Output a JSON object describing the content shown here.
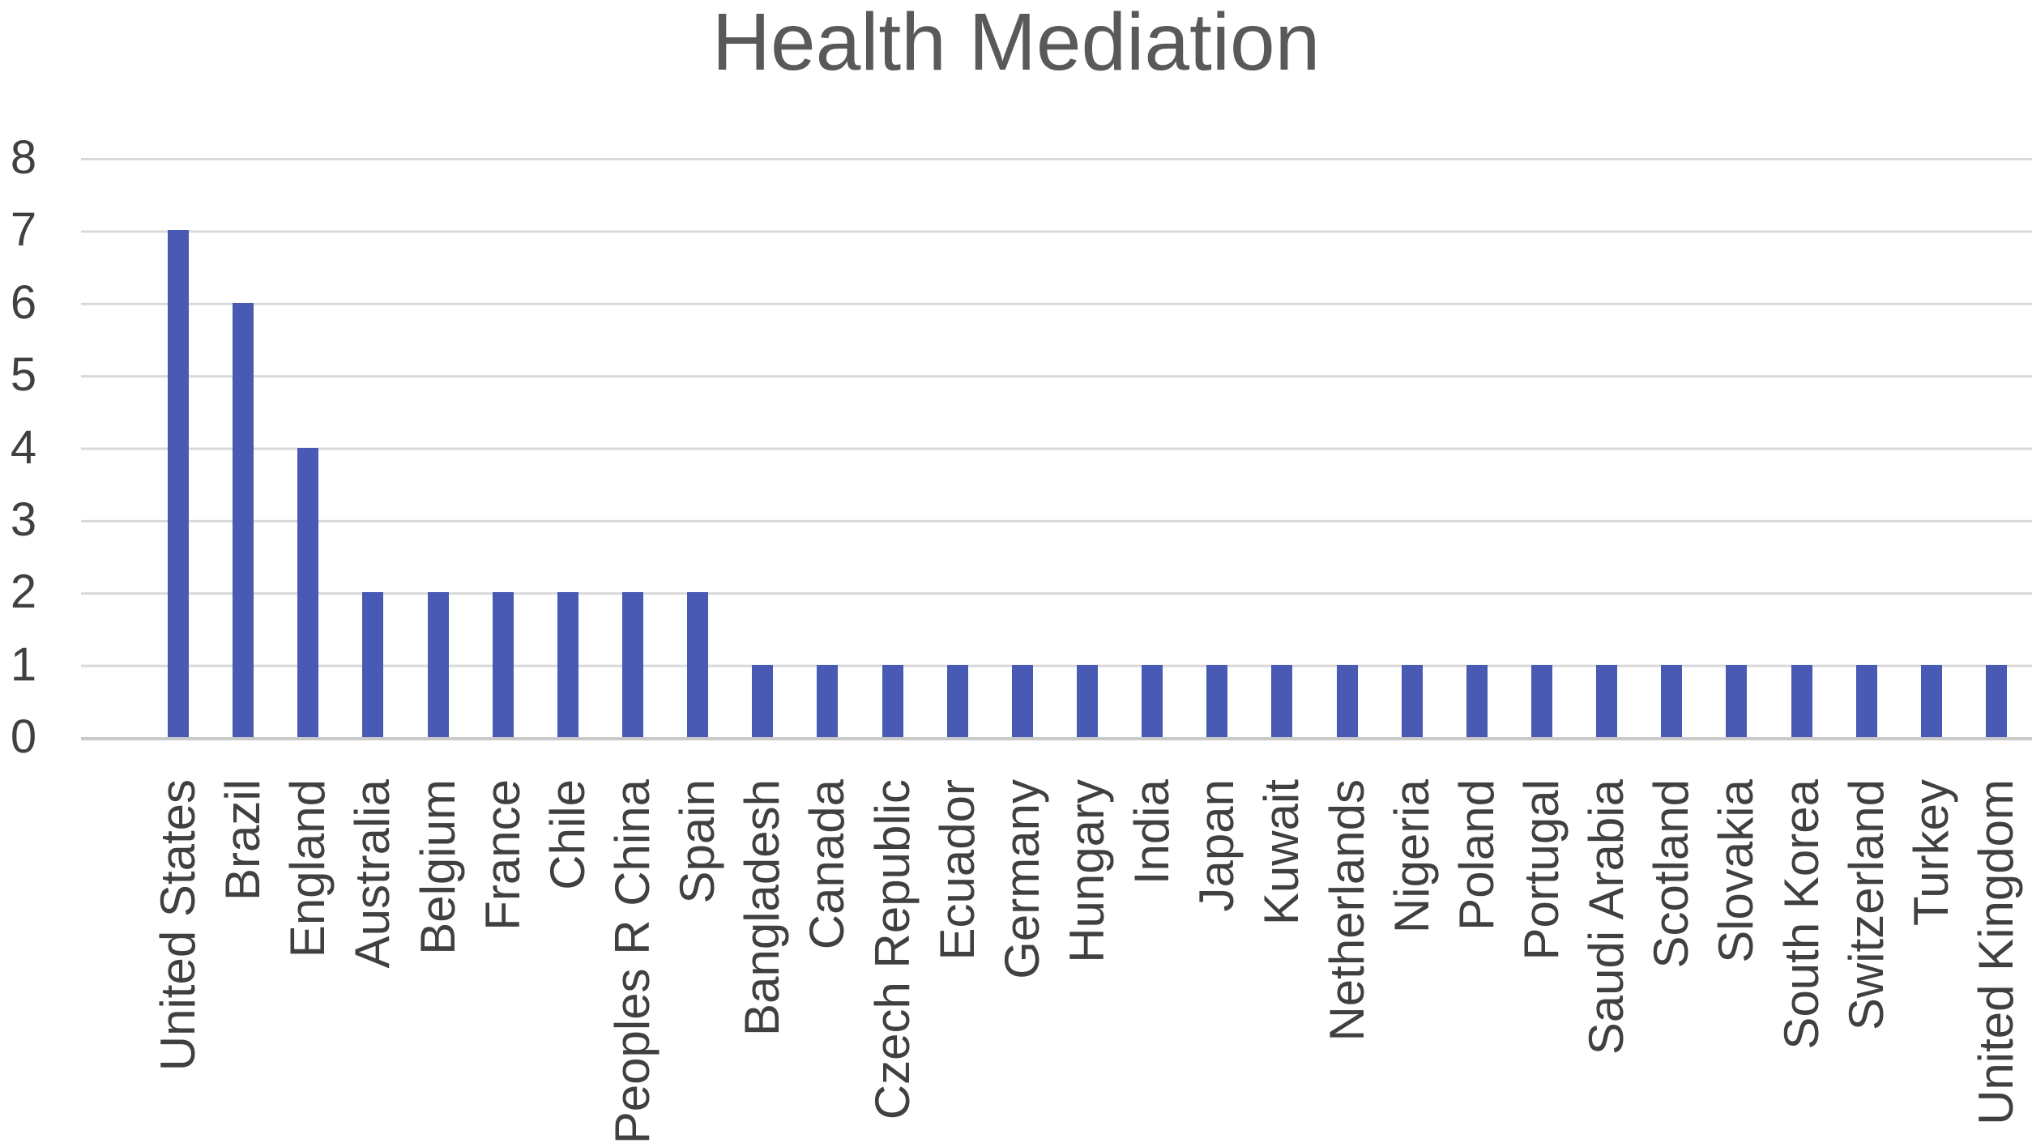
{
  "chart_data": {
    "type": "bar",
    "title": "Health Mediation",
    "categories": [
      "United States",
      "Brazil",
      "England",
      "Australia",
      "Belgium",
      "France",
      "Chile",
      "Peoples R China",
      "Spain",
      "Bangladesh",
      "Canada",
      "Czech Republic",
      "Ecuador",
      "Germany",
      "Hungary",
      "India",
      "Japan",
      "Kuwait",
      "Netherlands",
      "Nigeria",
      "Poland",
      "Portugal",
      "Saudi Arabia",
      "Scotland",
      "Slovakia",
      "South Korea",
      "Switzerland",
      "Turkey",
      "United Kingdom"
    ],
    "values": [
      7,
      6,
      4,
      2,
      2,
      2,
      2,
      2,
      2,
      1,
      1,
      1,
      1,
      1,
      1,
      1,
      1,
      1,
      1,
      1,
      1,
      1,
      1,
      1,
      1,
      1,
      1,
      1,
      1
    ],
    "xlabel": "",
    "ylabel": "",
    "ylim": [
      0,
      8
    ],
    "y_ticks": [
      8,
      7,
      6,
      5,
      4,
      3,
      2,
      1,
      0
    ],
    "grid": true,
    "legend": false,
    "colors": {
      "bar": "#485AB4",
      "gridline": "#D9D9D9",
      "axis_line": "#C9C9C9",
      "title_text": "#595959",
      "label_text": "#404040"
    }
  }
}
